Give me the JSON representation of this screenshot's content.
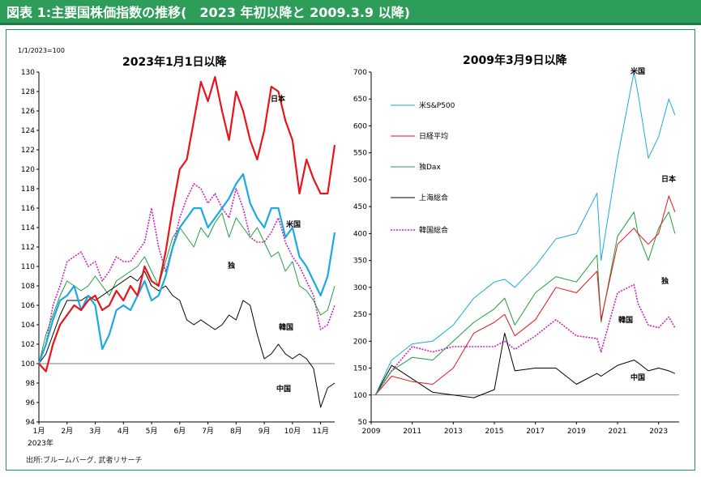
{
  "header": {
    "title": "図表 1:主要国株価指数の推移(　2023 年初以降と 2009.3.9 以降)"
  },
  "source": "出所:ブルームバーグ, 武者リサーチ",
  "colors": {
    "header_bg": "#2e9d59",
    "frame": "#1c9a5b",
    "us": "#1ba9e0",
    "jp": "#e8141a",
    "de": "#1f9e3d",
    "cn": "#000000",
    "kr": "#cc22bb"
  },
  "chart_data": [
    {
      "type": "line",
      "title": "2023年1月1日以降",
      "unit_label": "1/1/2023=100",
      "x_year_label": "2023年",
      "ylim": [
        94,
        130
      ],
      "yticks": [
        94,
        96,
        98,
        100,
        102,
        104,
        106,
        108,
        110,
        112,
        114,
        116,
        118,
        120,
        122,
        124,
        126,
        128,
        130
      ],
      "x_ticks": [
        "1月",
        "2月",
        "3月",
        "4月",
        "5月",
        "6月",
        "7月",
        "8月",
        "9月",
        "10月",
        "11月"
      ],
      "baseline": 100,
      "x_months": [
        0,
        0.25,
        0.5,
        0.75,
        1,
        1.25,
        1.5,
        1.75,
        2,
        2.25,
        2.5,
        2.75,
        3,
        3.25,
        3.5,
        3.75,
        4,
        4.25,
        4.5,
        4.75,
        5,
        5.25,
        5.5,
        5.75,
        6,
        6.25,
        6.5,
        6.75,
        7,
        7.25,
        7.5,
        7.75,
        8,
        8.25,
        8.5,
        8.75,
        9,
        9.25,
        9.5,
        9.75,
        10,
        10.25,
        10.5
      ],
      "series": [
        {
          "label": "日本",
          "color_key": "jp",
          "values": [
            100,
            99.2,
            102,
            104,
            105,
            106,
            105.5,
            106.5,
            107,
            105.5,
            106,
            107.5,
            106.5,
            108,
            107,
            110,
            108.5,
            108,
            111.5,
            116,
            120,
            121,
            125,
            129,
            127,
            129.5,
            126,
            123,
            128,
            126,
            123,
            121,
            124,
            128.5,
            128,
            125,
            123,
            117.5,
            121,
            119,
            117.5,
            117.5,
            122.5
          ]
        },
        {
          "label": "米国",
          "color_key": "us",
          "values": [
            100,
            102,
            104.5,
            106.5,
            107,
            108,
            105.5,
            107,
            106,
            101.5,
            103,
            105.5,
            106,
            105.5,
            107,
            108.5,
            106.5,
            107,
            109,
            112,
            114,
            115,
            116,
            116,
            114,
            115,
            116,
            117,
            118.5,
            119.5,
            116.5,
            115,
            114,
            116,
            116,
            113,
            114,
            111,
            110,
            108.5,
            107,
            109,
            113.5
          ]
        },
        {
          "label": "独",
          "color_key": "de",
          "values": [
            100,
            103,
            105,
            107,
            108.5,
            108,
            107.5,
            108,
            109,
            108,
            107,
            108.5,
            109,
            109.5,
            110,
            111,
            109.5,
            108,
            110.5,
            113,
            114,
            113,
            112,
            114,
            113,
            114.5,
            115.5,
            113,
            115,
            114,
            113,
            114,
            112.5,
            111,
            111.5,
            109.5,
            110.5,
            108,
            107.5,
            106.5,
            105,
            105.5,
            108
          ]
        },
        {
          "label": "中国",
          "color_key": "cn",
          "values": [
            100,
            101,
            103,
            105,
            106.5,
            106.5,
            106.5,
            107,
            106.5,
            107,
            107.5,
            108,
            108.5,
            109,
            108.5,
            109.5,
            108,
            107.5,
            108,
            107,
            106.5,
            104.5,
            104,
            104.5,
            104,
            103.5,
            104,
            105,
            104.5,
            106.5,
            106,
            103,
            100.5,
            101,
            102,
            101,
            100.5,
            101,
            100.5,
            99.5,
            95.5,
            97.5,
            98
          ]
        },
        {
          "label": "韓国",
          "color_key": "kr",
          "values": [
            100,
            102,
            106,
            108,
            110.5,
            111,
            111.5,
            110,
            110.5,
            108.5,
            109.5,
            111,
            110.5,
            110.5,
            111.5,
            112.5,
            116,
            112,
            109.5,
            112,
            115,
            117,
            118.5,
            118,
            116.5,
            117.5,
            116,
            115,
            118,
            116,
            113,
            112.5,
            112.5,
            113.5,
            115,
            112.5,
            111,
            110,
            108.5,
            107,
            103.5,
            104,
            106
          ]
        }
      ]
    },
    {
      "type": "line",
      "title": "2009年3月9日以降",
      "ylim": [
        50,
        700
      ],
      "yticks": [
        50,
        100,
        150,
        200,
        250,
        300,
        350,
        400,
        450,
        500,
        550,
        600,
        650,
        700
      ],
      "x_ticks": [
        2009,
        2011,
        2013,
        2015,
        2017,
        2019,
        2021,
        2023
      ],
      "xlim": [
        2009,
        2024
      ],
      "baseline": 100,
      "x_years": [
        2009.2,
        2010,
        2011,
        2012,
        2013,
        2014,
        2015,
        2015.5,
        2016,
        2017,
        2018,
        2019,
        2020,
        2020.2,
        2021,
        2021.8,
        2022,
        2022.5,
        2023,
        2023.5,
        2023.8
      ],
      "series": [
        {
          "name": "米S&P500",
          "label": "米国",
          "color_key": "us",
          "values": [
            100,
            165,
            195,
            200,
            230,
            280,
            310,
            315,
            300,
            340,
            390,
            400,
            475,
            350,
            540,
            700,
            660,
            540,
            580,
            650,
            620
          ]
        },
        {
          "name": "日経平均",
          "label": "日本",
          "color_key": "jp",
          "values": [
            100,
            135,
            125,
            120,
            150,
            215,
            235,
            250,
            210,
            240,
            300,
            290,
            330,
            240,
            380,
            410,
            400,
            380,
            400,
            470,
            440
          ]
        },
        {
          "name": "独Dax",
          "label": "独",
          "color_key": "de",
          "values": [
            100,
            145,
            170,
            165,
            200,
            235,
            260,
            280,
            230,
            290,
            320,
            310,
            360,
            235,
            395,
            440,
            400,
            350,
            410,
            440,
            400
          ]
        },
        {
          "name": "上海総合",
          "label": "中国",
          "color_key": "cn",
          "values": [
            100,
            155,
            130,
            105,
            100,
            95,
            110,
            215,
            145,
            150,
            150,
            120,
            140,
            135,
            155,
            165,
            160,
            145,
            150,
            145,
            140
          ]
        },
        {
          "name": "韓国総合",
          "label": "韓国",
          "color_key": "kr",
          "values": [
            100,
            145,
            190,
            180,
            190,
            190,
            190,
            200,
            185,
            210,
            240,
            210,
            205,
            180,
            290,
            305,
            270,
            230,
            225,
            245,
            225
          ]
        }
      ]
    }
  ]
}
